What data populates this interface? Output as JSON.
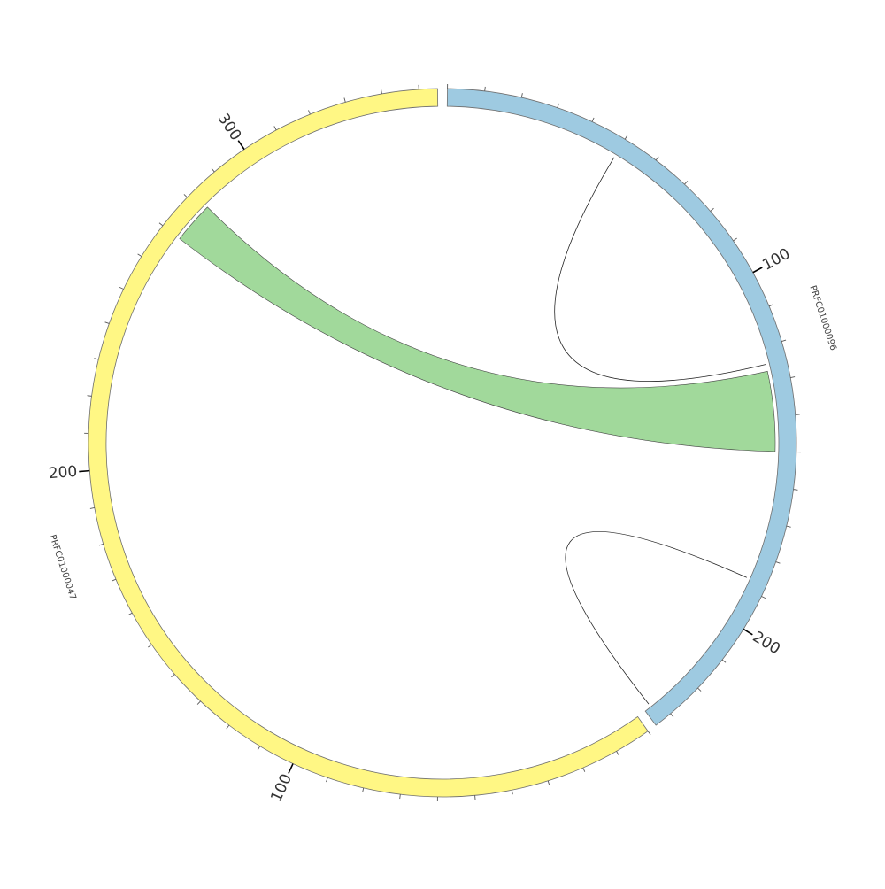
{
  "chromosomes": [
    {
      "id": "PRFC01000096",
      "label": "PRFC01000096",
      "length": 235,
      "color": "#9ecae1",
      "major_ticks": [
        {
          "pos": 100,
          "label": "100"
        },
        {
          "pos": 200,
          "label": "200"
        }
      ]
    },
    {
      "id": "PRFC01000047",
      "label": "PRFC01000047",
      "length": 355,
      "color": "#fff784",
      "major_ticks": [
        {
          "pos": 100,
          "label": "100"
        },
        {
          "pos": 200,
          "label": "200"
        },
        {
          "pos": 300,
          "label": "300"
        }
      ]
    }
  ],
  "links": [
    {
      "from": {
        "chr": "PRFC01000096",
        "start": 127,
        "end": 150
      },
      "to": {
        "chr": "PRFC01000047",
        "start": 270,
        "end": 282
      },
      "color": "#a1d99b",
      "kind": "ribbon"
    },
    {
      "from": {
        "chr": "PRFC01000096",
        "start": 50,
        "end": 125
      },
      "kind": "self-arc"
    },
    {
      "from": {
        "chr": "PRFC01000096",
        "start": 187,
        "end": 233
      },
      "kind": "self-arc"
    }
  ],
  "colors": {
    "outline": "#6e6e6e",
    "tick": "#555555"
  }
}
